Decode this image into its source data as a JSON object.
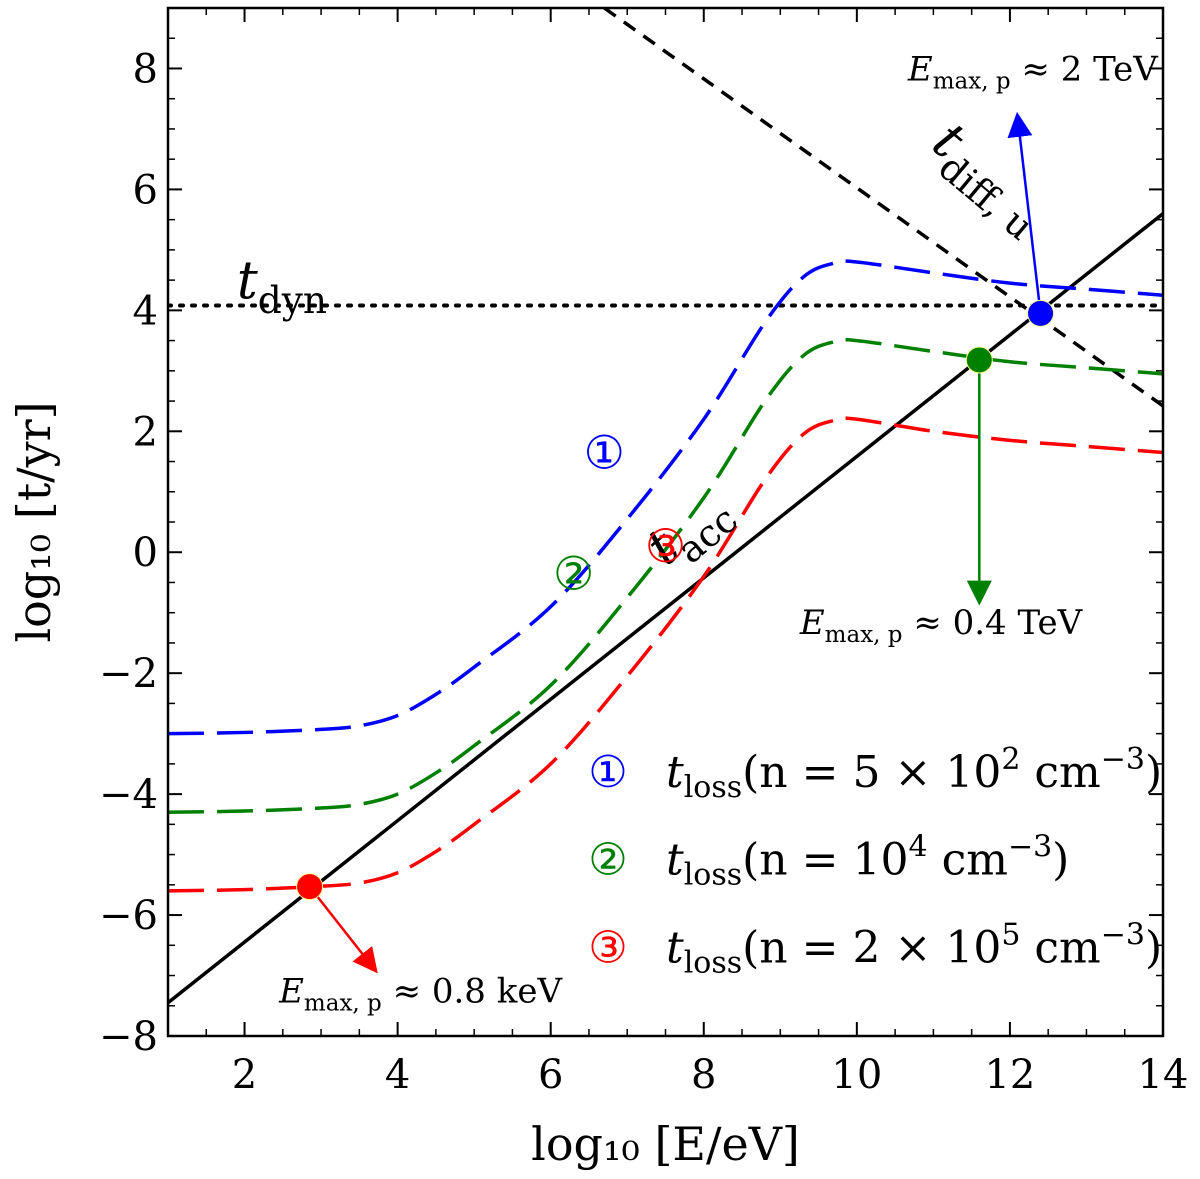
{
  "chart_data": {
    "type": "line",
    "xlabel": "log₁₀ [E/eV]",
    "ylabel": "log₁₀ [t/yr]",
    "xlim": [
      1,
      14
    ],
    "ylim": [
      -8,
      9
    ],
    "xticks": [
      2,
      4,
      6,
      8,
      10,
      12,
      14
    ],
    "yticks": [
      -8,
      -6,
      -4,
      -2,
      0,
      2,
      4,
      6,
      8
    ],
    "xtick_labels": [
      "2",
      "4",
      "6",
      "8",
      "10",
      "12",
      "14"
    ],
    "ytick_labels": [
      "−8",
      "−6",
      "−4",
      "−2",
      "0",
      "2",
      "4",
      "6",
      "8"
    ],
    "grid": false,
    "legend_position": "lower-right",
    "series": [
      {
        "name": "t_acc",
        "label": "t",
        "sub": "acc",
        "style": "solid",
        "color": "#000000",
        "x": [
          1,
          14
        ],
        "y": [
          -7.45,
          5.6
        ]
      },
      {
        "name": "t_dyn",
        "label": "t",
        "sub": "dyn",
        "style": "dotted",
        "color": "#000000",
        "x": [
          1,
          14
        ],
        "y": [
          4.08,
          4.08
        ]
      },
      {
        "name": "t_diff,u",
        "label": "t",
        "sub": "diff, u",
        "style": "dashed",
        "color": "#000000",
        "x": [
          6.7,
          14
        ],
        "y": [
          9.0,
          2.42
        ]
      },
      {
        "name": "t_loss (n = 5×10² cm⁻³)",
        "marker": "①",
        "style": "long-dash",
        "color": "#0000ff",
        "x": [
          1,
          2,
          3,
          3.5,
          4,
          4.5,
          5,
          6,
          7,
          8,
          8.8,
          9.3,
          9.7,
          10,
          11,
          12,
          13,
          14
        ],
        "y": [
          -3.0,
          -2.98,
          -2.93,
          -2.87,
          -2.7,
          -2.35,
          -1.9,
          -0.9,
          0.55,
          2.2,
          3.8,
          4.55,
          4.78,
          4.8,
          4.62,
          4.45,
          4.35,
          4.25
        ]
      },
      {
        "name": "t_loss (n = 10⁴ cm⁻³)",
        "marker": "②",
        "style": "long-dash",
        "color": "#008000",
        "x": [
          1,
          2,
          3,
          3.5,
          4,
          4.5,
          5,
          6,
          7,
          8,
          8.8,
          9.3,
          9.7,
          10,
          11,
          12,
          13,
          14
        ],
        "y": [
          -4.3,
          -4.28,
          -4.23,
          -4.17,
          -4.0,
          -3.65,
          -3.2,
          -2.2,
          -0.75,
          0.9,
          2.5,
          3.25,
          3.48,
          3.5,
          3.32,
          3.15,
          3.05,
          2.95
        ]
      },
      {
        "name": "t_loss (n = 2×10⁵ cm⁻³)",
        "marker": "③",
        "style": "long-dash",
        "color": "#ff0000",
        "x": [
          1,
          2,
          2.9,
          3.5,
          4,
          4.5,
          5,
          6,
          7,
          8,
          8.8,
          9.3,
          9.7,
          10,
          11,
          12,
          13,
          14
        ],
        "y": [
          -5.6,
          -5.58,
          -5.53,
          -5.47,
          -5.3,
          -4.95,
          -4.5,
          -3.5,
          -2.05,
          -0.4,
          1.2,
          1.95,
          2.18,
          2.2,
          2.0,
          1.85,
          1.75,
          1.65
        ]
      }
    ],
    "points": [
      {
        "name": "E_max_p blue",
        "color": "#0000ff",
        "x": 12.4,
        "y": 3.95,
        "arrow_to": [
          12.1,
          7.2
        ],
        "label": "≈ 2 TeV",
        "label_at": [
          12.3,
          7.8
        ]
      },
      {
        "name": "E_max_p green",
        "color": "#008000",
        "x": 11.6,
        "y": 3.18,
        "arrow_to": [
          11.6,
          -0.8
        ],
        "label": "≈ 0.4 TeV",
        "label_at": [
          11.1,
          -1.35
        ]
      },
      {
        "name": "E_max_p red",
        "color": "#ff0000",
        "x": 2.85,
        "y": -5.53,
        "arrow_to": [
          3.7,
          -6.9
        ],
        "label": "≈ 0.8 keV",
        "label_at": [
          4.3,
          -7.45
        ]
      }
    ],
    "annotations": {
      "emax_main": "E",
      "emax_sub": "max, p",
      "circled_blue": "①",
      "circled_green": "②",
      "circled_red": "③"
    },
    "legend": [
      {
        "marker": "①",
        "color": "#0000ff",
        "main": "t",
        "sub": "loss",
        "text": "(n = 5 × 10",
        "sup": "2",
        "unit": " cm",
        "unit_sup": "−3",
        "close": ")"
      },
      {
        "marker": "②",
        "color": "#008000",
        "main": "t",
        "sub": "loss",
        "text": "(n = 10",
        "sup": "4",
        "unit": " cm",
        "unit_sup": "−3",
        "close": ")"
      },
      {
        "marker": "③",
        "color": "#ff0000",
        "main": "t",
        "sub": "loss",
        "text": "(n = 2 × 10",
        "sup": "5",
        "unit": " cm",
        "unit_sup": "−3",
        "close": ")"
      }
    ]
  }
}
